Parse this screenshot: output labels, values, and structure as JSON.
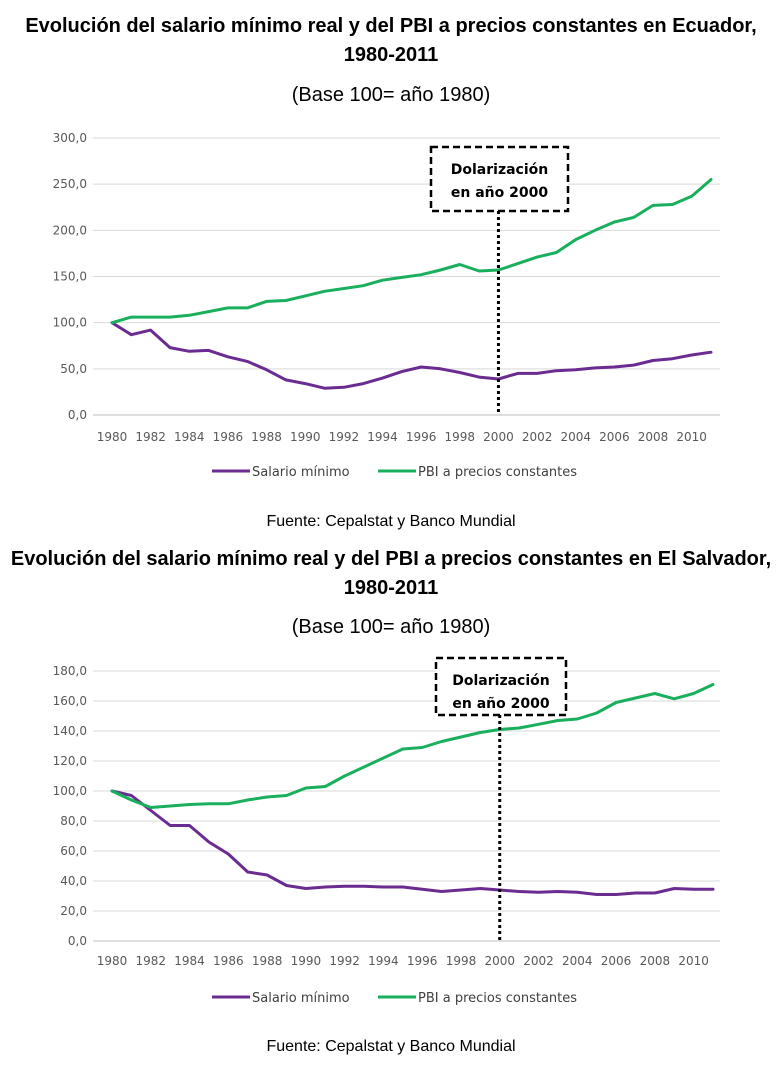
{
  "charts": [
    {
      "title": "Evolución del salario mínimo real y del PBI a precios constantes en Ecuador, 1980-2011",
      "subtitle": "(Base 100= año 1980)",
      "source": "Fuente: Cepalstat y Banco Mundial",
      "annotation": [
        "Dolarización",
        "en año 2000"
      ]
    },
    {
      "title": "Evolución del salario mínimo real y del PBI a precios constantes en El Salvador, 1980-2011",
      "subtitle": "(Base 100= año 1980)",
      "source": "Fuente: Cepalstat y Banco Mundial",
      "annotation": [
        "Dolarización",
        "en año 2000"
      ]
    }
  ],
  "chart_data": [
    {
      "type": "line",
      "title": "Evolución del salario mínimo real y del PBI a precios constantes en Ecuador, 1980-2011",
      "subtitle": "(Base 100= año 1980)",
      "x": [
        1980,
        1981,
        1982,
        1983,
        1984,
        1985,
        1986,
        1987,
        1988,
        1989,
        1990,
        1991,
        1992,
        1993,
        1994,
        1995,
        1996,
        1997,
        1998,
        1999,
        2000,
        2001,
        2002,
        2003,
        2004,
        2005,
        2006,
        2007,
        2008,
        2009,
        2010,
        2011
      ],
      "xticks": [
        "1980",
        "1982",
        "1984",
        "1986",
        "1988",
        "1990",
        "1992",
        "1994",
        "1996",
        "1998",
        "2000",
        "2002",
        "2004",
        "2006",
        "2008",
        "2010"
      ],
      "yticks": [
        "0,0",
        "50,0",
        "100,0",
        "150,0",
        "200,0",
        "250,0",
        "300,0"
      ],
      "ylim": [
        0,
        300
      ],
      "grid": true,
      "legend_position": "bottom",
      "vline_x": 2000,
      "series": [
        {
          "name": "Salario mínimo",
          "color": "#6A2C91",
          "values": [
            100,
            87,
            92,
            73,
            69,
            70,
            63,
            58,
            49,
            38,
            34,
            29,
            30,
            34,
            40,
            47,
            52,
            50,
            46,
            41,
            39,
            45,
            45,
            48,
            49,
            51,
            52,
            54,
            59,
            61,
            65,
            68
          ]
        },
        {
          "name": "PBI a precios constantes",
          "color": "#1AAF5D",
          "values": [
            100,
            106,
            106,
            106,
            108,
            112,
            116,
            116,
            123,
            124,
            129,
            134,
            137,
            140,
            146,
            149,
            152,
            157,
            163,
            156,
            157,
            164,
            171,
            176,
            190,
            200,
            209,
            214,
            227,
            228,
            237,
            255
          ]
        }
      ],
      "source": "Fuente: Cepalstat y Banco Mundial"
    },
    {
      "type": "line",
      "title": "Evolución del salario mínimo real y del PBI a precios constantes en El Salvador, 1980-2011",
      "subtitle": "(Base 100= año 1980)",
      "x": [
        1980,
        1981,
        1982,
        1983,
        1984,
        1985,
        1986,
        1987,
        1988,
        1989,
        1990,
        1991,
        1992,
        1993,
        1994,
        1995,
        1996,
        1997,
        1998,
        1999,
        2000,
        2001,
        2002,
        2003,
        2004,
        2005,
        2006,
        2007,
        2008,
        2009,
        2010,
        2011
      ],
      "xticks": [
        "1980",
        "1982",
        "1984",
        "1986",
        "1988",
        "1990",
        "1992",
        "1994",
        "1996",
        "1998",
        "2000",
        "2002",
        "2004",
        "2006",
        "2008",
        "2010"
      ],
      "yticks": [
        "0,0",
        "20,0",
        "40,0",
        "60,0",
        "80,0",
        "100,0",
        "120,0",
        "140,0",
        "160,0",
        "180,0"
      ],
      "ylim": [
        0,
        180
      ],
      "grid": true,
      "legend_position": "bottom",
      "vline_x": 2000,
      "series": [
        {
          "name": "Salario mínimo",
          "color": "#6A2C91",
          "values": [
            100,
            97,
            87,
            77,
            77,
            66,
            58,
            46,
            44,
            37,
            35,
            36,
            36.5,
            36.5,
            36,
            36,
            34.5,
            33,
            34,
            35,
            34,
            33,
            32.5,
            33,
            32.5,
            31,
            31,
            32,
            32,
            35,
            34.5,
            34.5
          ]
        },
        {
          "name": "PBI a precios constantes",
          "color": "#1AAF5D",
          "values": [
            100,
            94,
            89,
            90,
            91,
            91.5,
            91.5,
            94,
            96,
            97,
            102,
            103,
            110,
            116,
            122,
            128,
            129,
            133,
            136,
            139,
            141,
            142,
            144.5,
            147,
            148,
            152,
            159,
            162,
            165,
            161.5,
            165,
            171
          ]
        }
      ],
      "source": "Fuente: Cepalstat y Banco Mundial"
    }
  ]
}
